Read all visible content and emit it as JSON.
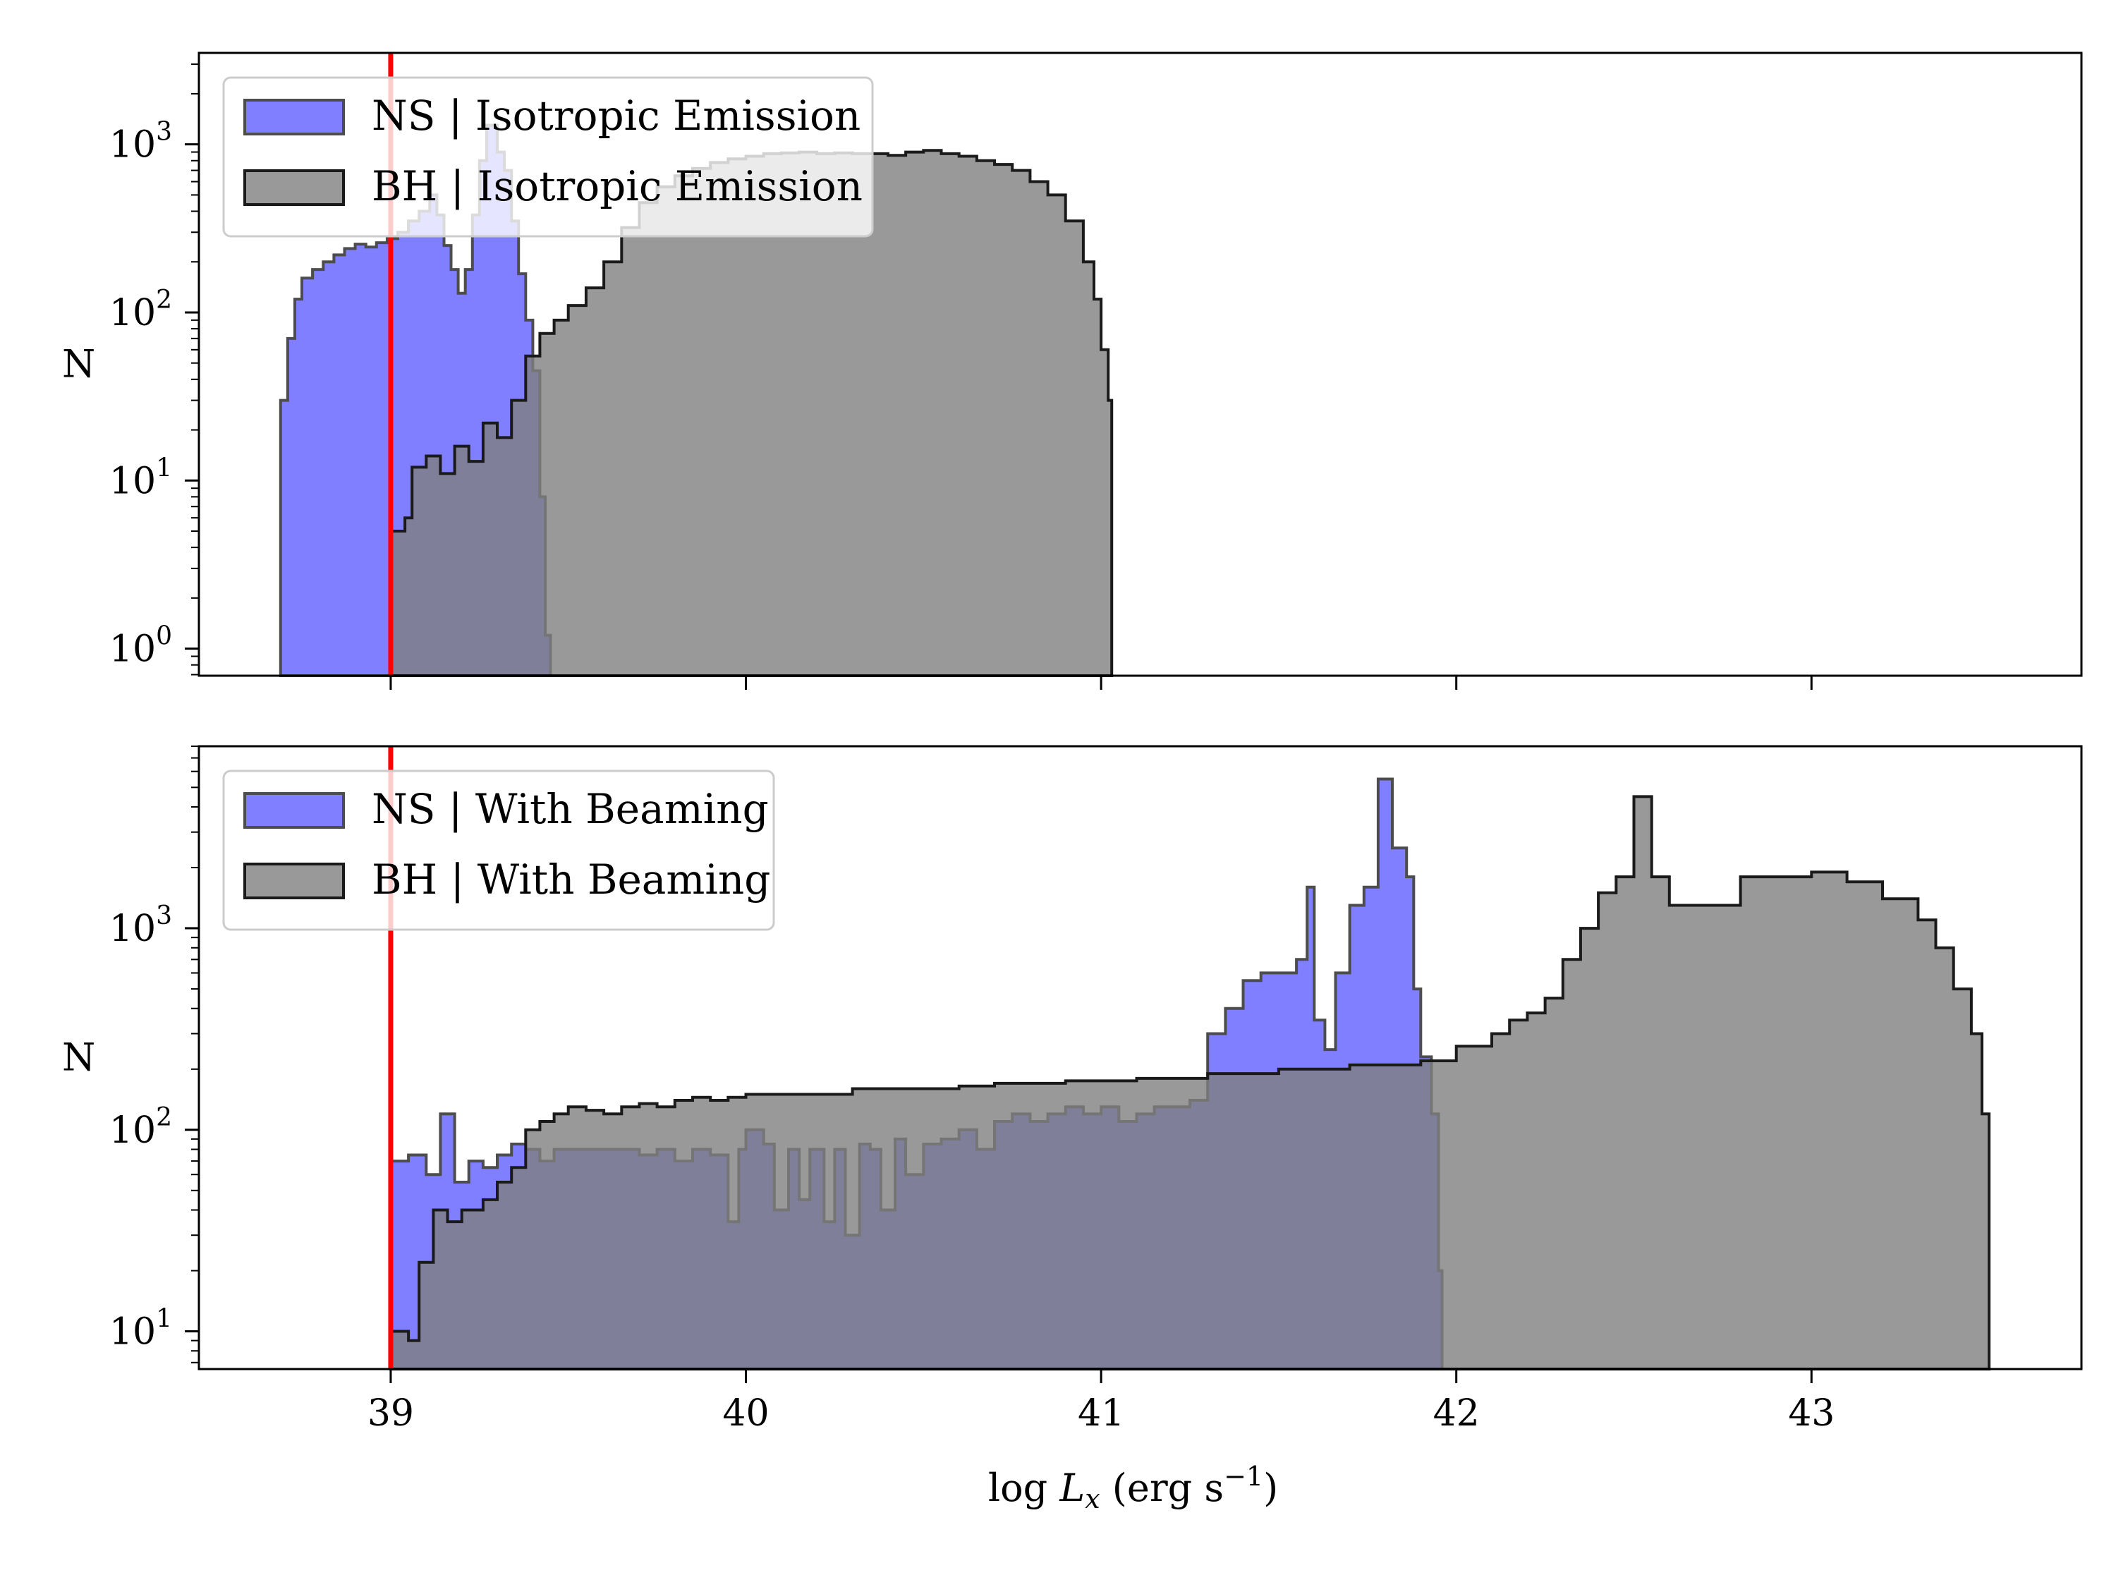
{
  "chart_data": [
    {
      "type": "histogram",
      "panel": "top",
      "yscale": "log",
      "ylabel": "N",
      "xlabel": "",
      "xlim": [
        38.46,
        43.76
      ],
      "ylim": [
        0.69,
        3500
      ],
      "x_ticks": [
        39,
        40,
        41,
        42,
        43
      ],
      "y_ticks": [
        {
          "value": 1,
          "base": "10",
          "exp": "0"
        },
        {
          "value": 10,
          "base": "10",
          "exp": "1"
        },
        {
          "value": 100,
          "base": "10",
          "exp": "2"
        },
        {
          "value": 1000,
          "base": "10",
          "exp": "3"
        }
      ],
      "threshold_line_x": 39,
      "threshold_color": "#ff0000",
      "legend_position": "upper-left",
      "series": [
        {
          "name": "NS | Isotropic Emission",
          "fill": "#0000ff",
          "fill_opacity": 0.5,
          "edge": "#4d4d4d",
          "points": [
            [
              38.69,
              0
            ],
            [
              38.69,
              30
            ],
            [
              38.71,
              70
            ],
            [
              38.73,
              120
            ],
            [
              38.75,
              160
            ],
            [
              38.78,
              180
            ],
            [
              38.81,
              200
            ],
            [
              38.84,
              220
            ],
            [
              38.87,
              240
            ],
            [
              38.9,
              255
            ],
            [
              38.93,
              245
            ],
            [
              38.96,
              260
            ],
            [
              38.99,
              275
            ],
            [
              39.02,
              300
            ],
            [
              39.05,
              350
            ],
            [
              39.08,
              400
            ],
            [
              39.11,
              500
            ],
            [
              39.13,
              380
            ],
            [
              39.15,
              250
            ],
            [
              39.17,
              180
            ],
            [
              39.19,
              130
            ],
            [
              39.21,
              180
            ],
            [
              39.23,
              380
            ],
            [
              39.25,
              800
            ],
            [
              39.27,
              1300
            ],
            [
              39.3,
              900
            ],
            [
              39.32,
              700
            ],
            [
              39.34,
              350
            ],
            [
              39.36,
              170
            ],
            [
              39.38,
              90
            ],
            [
              39.4,
              45
            ],
            [
              39.42,
              8
            ],
            [
              39.435,
              1.2
            ],
            [
              39.45,
              0
            ]
          ]
        },
        {
          "name": "BH | Isotropic Emission",
          "fill": "#808080",
          "fill_opacity": 0.8,
          "edge": "#1a1a1a",
          "points": [
            [
              39.0,
              0
            ],
            [
              39.0,
              5
            ],
            [
              39.04,
              6
            ],
            [
              39.06,
              12
            ],
            [
              39.1,
              14
            ],
            [
              39.14,
              11
            ],
            [
              39.18,
              16
            ],
            [
              39.22,
              13
            ],
            [
              39.26,
              22
            ],
            [
              39.3,
              18
            ],
            [
              39.34,
              30
            ],
            [
              39.38,
              55
            ],
            [
              39.42,
              75
            ],
            [
              39.46,
              90
            ],
            [
              39.5,
              110
            ],
            [
              39.55,
              140
            ],
            [
              39.6,
              200
            ],
            [
              39.65,
              320
            ],
            [
              39.7,
              450
            ],
            [
              39.75,
              560
            ],
            [
              39.8,
              650
            ],
            [
              39.85,
              720
            ],
            [
              39.9,
              780
            ],
            [
              39.95,
              820
            ],
            [
              40.0,
              850
            ],
            [
              40.05,
              880
            ],
            [
              40.1,
              890
            ],
            [
              40.15,
              900
            ],
            [
              40.2,
              880
            ],
            [
              40.25,
              890
            ],
            [
              40.3,
              880
            ],
            [
              40.35,
              880
            ],
            [
              40.4,
              860
            ],
            [
              40.45,
              900
            ],
            [
              40.5,
              920
            ],
            [
              40.55,
              880
            ],
            [
              40.6,
              850
            ],
            [
              40.65,
              800
            ],
            [
              40.7,
              760
            ],
            [
              40.75,
              700
            ],
            [
              40.8,
              600
            ],
            [
              40.85,
              500
            ],
            [
              40.9,
              350
            ],
            [
              40.95,
              200
            ],
            [
              40.98,
              120
            ],
            [
              41.0,
              60
            ],
            [
              41.02,
              30
            ],
            [
              41.03,
              0
            ]
          ]
        }
      ]
    },
    {
      "type": "histogram",
      "panel": "bottom",
      "yscale": "log",
      "ylabel": "N",
      "xlabel": "log L_x (erg s^-1)",
      "xlabel_parts": {
        "prefix": "log ",
        "var": "L",
        "sub": "x",
        "unit_open": " (erg s",
        "sup": "−1",
        "unit_close": ")"
      },
      "xlim": [
        38.46,
        43.76
      ],
      "ylim": [
        6.5,
        8000
      ],
      "x_ticks": [
        39,
        40,
        41,
        42,
        43
      ],
      "y_ticks": [
        {
          "value": 10,
          "base": "10",
          "exp": "1"
        },
        {
          "value": 100,
          "base": "10",
          "exp": "2"
        },
        {
          "value": 1000,
          "base": "10",
          "exp": "3"
        }
      ],
      "threshold_line_x": 39,
      "threshold_color": "#ff0000",
      "legend_position": "upper-left",
      "series": [
        {
          "name": "NS | With Beaming",
          "fill": "#0000ff",
          "fill_opacity": 0.5,
          "edge": "#4d4d4d",
          "points": [
            [
              39.0,
              0
            ],
            [
              39.0,
              70
            ],
            [
              39.05,
              75
            ],
            [
              39.1,
              60
            ],
            [
              39.14,
              120
            ],
            [
              39.18,
              55
            ],
            [
              39.22,
              70
            ],
            [
              39.26,
              65
            ],
            [
              39.3,
              75
            ],
            [
              39.34,
              85
            ],
            [
              39.38,
              80
            ],
            [
              39.42,
              70
            ],
            [
              39.46,
              80
            ],
            [
              39.5,
              80
            ],
            [
              39.55,
              80
            ],
            [
              39.6,
              80
            ],
            [
              39.65,
              80
            ],
            [
              39.7,
              75
            ],
            [
              39.75,
              80
            ],
            [
              39.8,
              70
            ],
            [
              39.85,
              80
            ],
            [
              39.9,
              75
            ],
            [
              39.95,
              35
            ],
            [
              39.98,
              80
            ],
            [
              40.0,
              100
            ],
            [
              40.05,
              85
            ],
            [
              40.08,
              40
            ],
            [
              40.12,
              80
            ],
            [
              40.15,
              45
            ],
            [
              40.18,
              80
            ],
            [
              40.22,
              35
            ],
            [
              40.25,
              80
            ],
            [
              40.28,
              30
            ],
            [
              40.32,
              85
            ],
            [
              40.35,
              80
            ],
            [
              40.38,
              40
            ],
            [
              40.42,
              90
            ],
            [
              40.45,
              60
            ],
            [
              40.5,
              85
            ],
            [
              40.55,
              90
            ],
            [
              40.6,
              100
            ],
            [
              40.65,
              80
            ],
            [
              40.7,
              110
            ],
            [
              40.75,
              120
            ],
            [
              40.8,
              110
            ],
            [
              40.85,
              120
            ],
            [
              40.9,
              130
            ],
            [
              40.95,
              120
            ],
            [
              41.0,
              130
            ],
            [
              41.05,
              110
            ],
            [
              41.1,
              120
            ],
            [
              41.15,
              130
            ],
            [
              41.2,
              130
            ],
            [
              41.25,
              140
            ],
            [
              41.3,
              300
            ],
            [
              41.35,
              400
            ],
            [
              41.4,
              550
            ],
            [
              41.45,
              600
            ],
            [
              41.5,
              600
            ],
            [
              41.55,
              700
            ],
            [
              41.58,
              1600
            ],
            [
              41.6,
              350
            ],
            [
              41.63,
              250
            ],
            [
              41.66,
              600
            ],
            [
              41.7,
              1300
            ],
            [
              41.74,
              1600
            ],
            [
              41.78,
              5500
            ],
            [
              41.82,
              2500
            ],
            [
              41.86,
              1800
            ],
            [
              41.88,
              500
            ],
            [
              41.9,
              230
            ],
            [
              41.93,
              120
            ],
            [
              41.95,
              20
            ],
            [
              41.96,
              0
            ]
          ]
        },
        {
          "name": "BH | With Beaming",
          "fill": "#808080",
          "fill_opacity": 0.8,
          "edge": "#1a1a1a",
          "points": [
            [
              39.0,
              0
            ],
            [
              39.0,
              10
            ],
            [
              39.05,
              9
            ],
            [
              39.08,
              22
            ],
            [
              39.12,
              40
            ],
            [
              39.16,
              35
            ],
            [
              39.2,
              40
            ],
            [
              39.26,
              45
            ],
            [
              39.3,
              55
            ],
            [
              39.34,
              65
            ],
            [
              39.38,
              100
            ],
            [
              39.42,
              110
            ],
            [
              39.46,
              120
            ],
            [
              39.5,
              130
            ],
            [
              39.55,
              125
            ],
            [
              39.6,
              120
            ],
            [
              39.65,
              130
            ],
            [
              39.7,
              135
            ],
            [
              39.75,
              130
            ],
            [
              39.8,
              140
            ],
            [
              39.85,
              145
            ],
            [
              39.9,
              140
            ],
            [
              39.95,
              145
            ],
            [
              40.0,
              150
            ],
            [
              40.1,
              150
            ],
            [
              40.2,
              150
            ],
            [
              40.3,
              160
            ],
            [
              40.4,
              160
            ],
            [
              40.5,
              160
            ],
            [
              40.6,
              165
            ],
            [
              40.7,
              170
            ],
            [
              40.8,
              170
            ],
            [
              40.9,
              175
            ],
            [
              41.0,
              175
            ],
            [
              41.1,
              180
            ],
            [
              41.2,
              180
            ],
            [
              41.3,
              190
            ],
            [
              41.4,
              190
            ],
            [
              41.5,
              200
            ],
            [
              41.6,
              200
            ],
            [
              41.7,
              210
            ],
            [
              41.8,
              210
            ],
            [
              41.9,
              220
            ],
            [
              42.0,
              260
            ],
            [
              42.1,
              300
            ],
            [
              42.15,
              350
            ],
            [
              42.2,
              380
            ],
            [
              42.25,
              450
            ],
            [
              42.3,
              700
            ],
            [
              42.35,
              1000
            ],
            [
              42.4,
              1500
            ],
            [
              42.45,
              1800
            ],
            [
              42.5,
              4500
            ],
            [
              42.55,
              1800
            ],
            [
              42.6,
              1300
            ],
            [
              42.7,
              1300
            ],
            [
              42.8,
              1800
            ],
            [
              42.9,
              1800
            ],
            [
              43.0,
              1900
            ],
            [
              43.1,
              1700
            ],
            [
              43.2,
              1400
            ],
            [
              43.3,
              1100
            ],
            [
              43.35,
              800
            ],
            [
              43.4,
              500
            ],
            [
              43.45,
              300
            ],
            [
              43.48,
              120
            ],
            [
              43.5,
              0
            ]
          ]
        }
      ]
    }
  ]
}
